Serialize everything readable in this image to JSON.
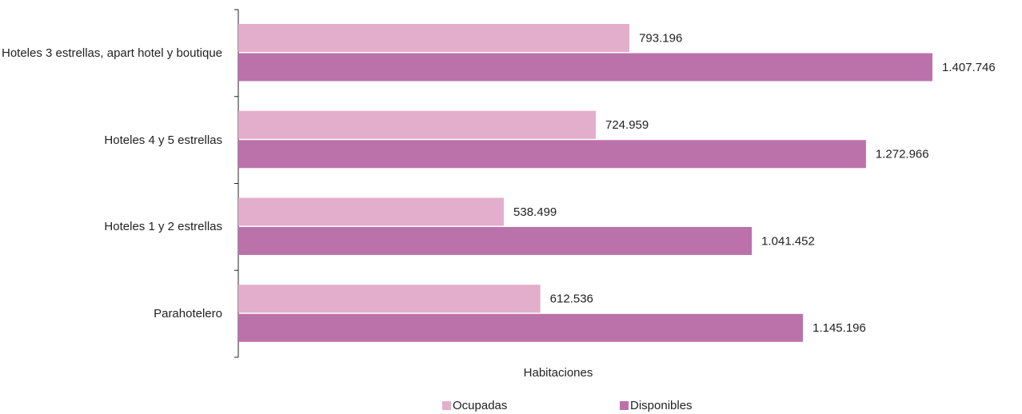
{
  "chart_data": {
    "type": "bar",
    "orientation": "horizontal",
    "categories": [
      "Hoteles 3 estrellas, apart hotel y boutique",
      "Hoteles 4 y 5 estrellas",
      "Hoteles 1 y 2 estrellas",
      "Parahotelero"
    ],
    "series": [
      {
        "name": "Ocupadas",
        "color": "#e3aecb",
        "values": [
          793196,
          724959,
          538499,
          612536
        ],
        "value_labels": [
          "793.196",
          "724.959",
          "538.499",
          "612.536"
        ]
      },
      {
        "name": "Disponibles",
        "color": "#bb72aa",
        "values": [
          1407746,
          1272966,
          1041452,
          1145196
        ],
        "value_labels": [
          "1.407.746",
          "1.272.966",
          "1.041.452",
          "1.145.196"
        ]
      }
    ],
    "x_label": "Habitaciones"
  }
}
